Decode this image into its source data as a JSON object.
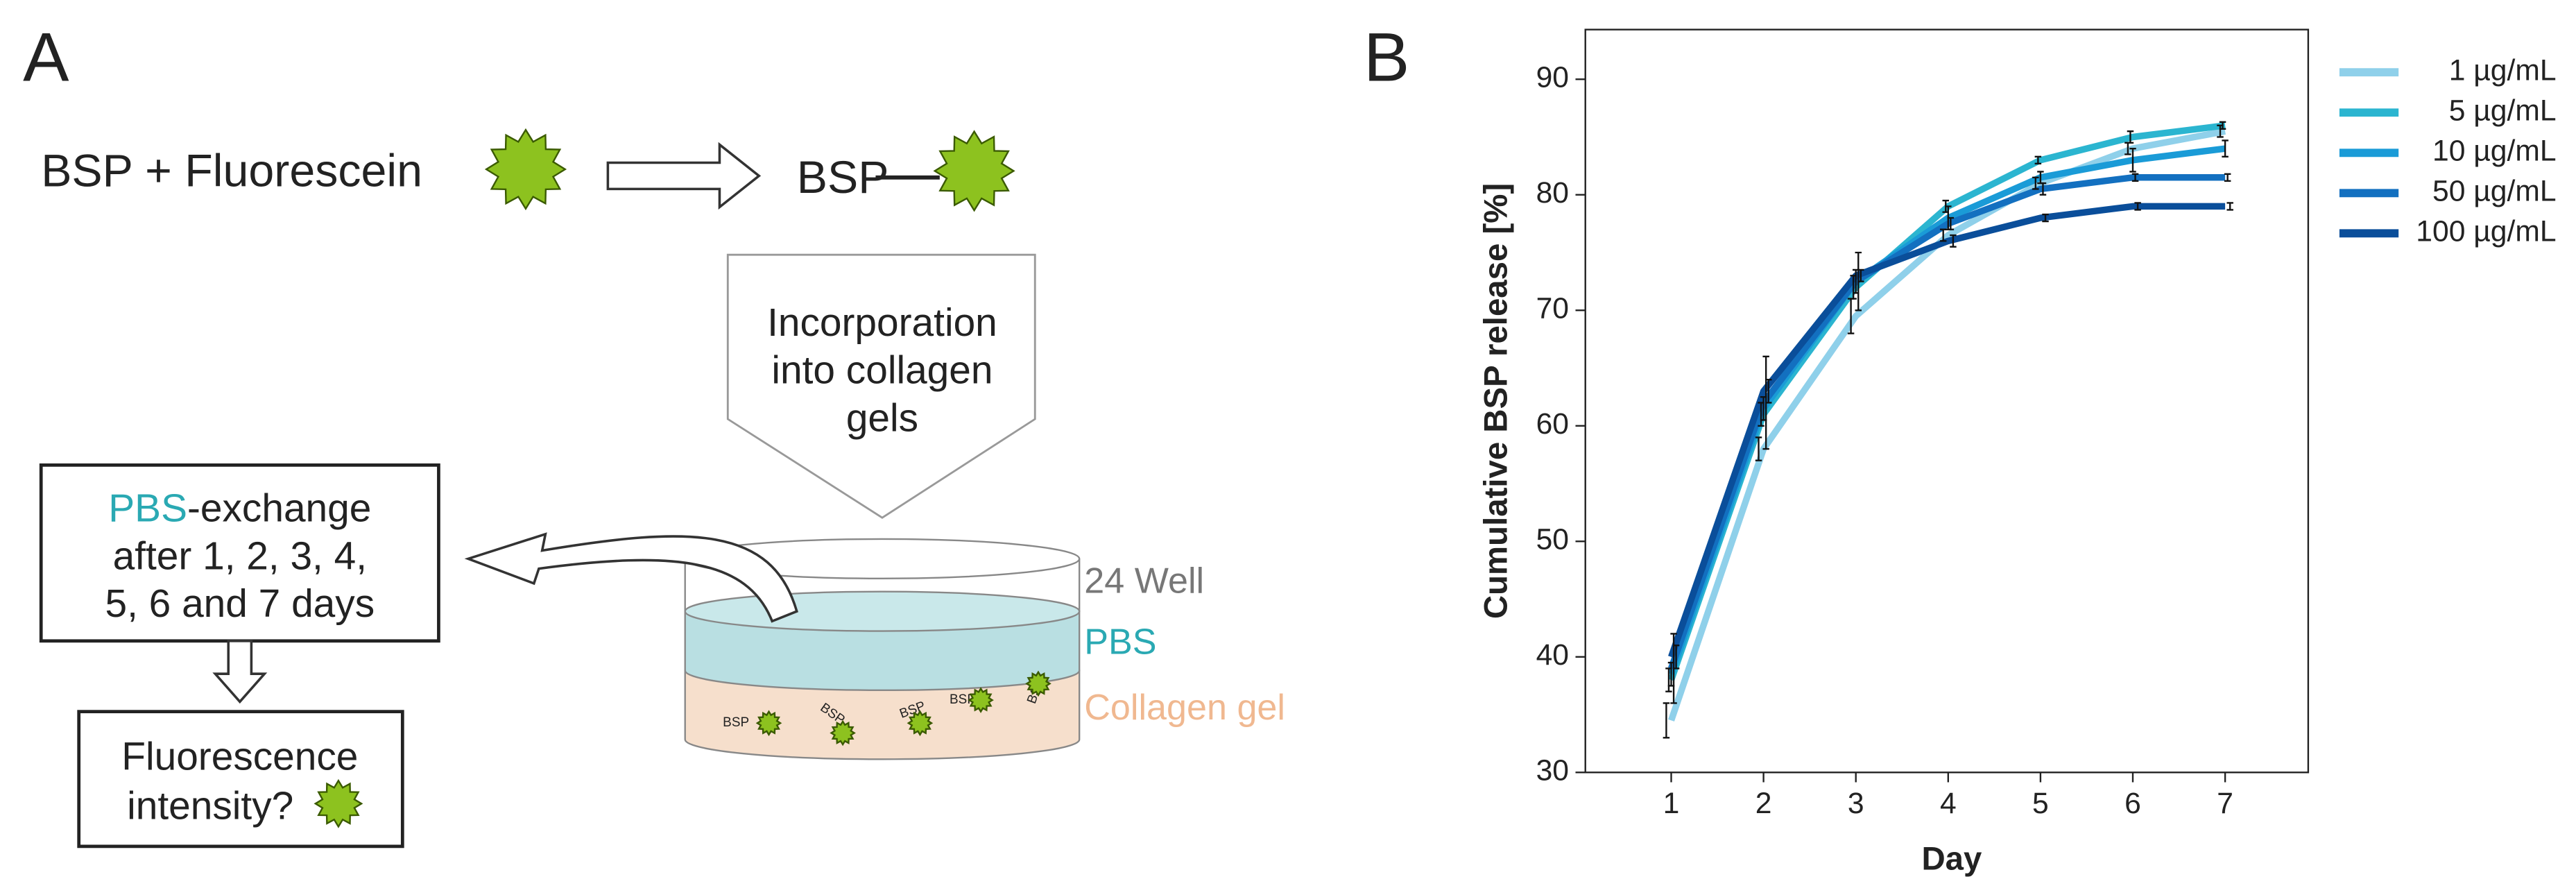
{
  "panel_a": {
    "letter": "A",
    "reaction_left": "BSP + Fluorescein",
    "reaction_right": "BSP",
    "incorporation": [
      "Incorporation",
      "into collagen",
      "gels"
    ],
    "exchange_highlight": "PBS",
    "exchange_rest": "-exchange",
    "exchange_lines": [
      "after 1, 2, 3, 4,",
      "5, 6 and 7 days"
    ],
    "fluorescence": [
      "Fluorescence",
      "intensity?"
    ],
    "well_label": "24 Well",
    "pbs_label": "PBS",
    "gel_label": "Collagen gel",
    "gel_bsp": [
      "BSP",
      "BSP",
      "BSP",
      "BSP",
      "BSP"
    ]
  },
  "chart_data": {
    "type": "line",
    "letter": "B",
    "xlabel": "Day",
    "ylabel": "Cumulative BSP release [%]",
    "x": [
      1,
      2,
      3,
      4,
      5,
      6,
      7
    ],
    "xlim": [
      0.07,
      7.9
    ],
    "xticks": [
      1,
      2,
      3,
      4,
      5,
      6,
      7
    ],
    "ylim": [
      30,
      94.3
    ],
    "yticks": [
      30,
      40,
      50,
      60,
      70,
      80,
      90
    ],
    "legend": "top-right",
    "series": [
      {
        "name": "1 µg/mL",
        "color": "#8fd0ea",
        "values": [
          34.5,
          58,
          69.5,
          76.5,
          81,
          84,
          85.5
        ],
        "errors": [
          1.5,
          1,
          1.5,
          0.5,
          0.5,
          0.5,
          0.5
        ]
      },
      {
        "name": "5 µg/mL",
        "color": "#2bb5d0",
        "values": [
          38,
          61,
          72,
          79,
          83,
          85,
          86
        ],
        "errors": [
          1,
          1,
          1,
          0.5,
          0.3,
          0.5,
          0.3
        ]
      },
      {
        "name": "10 µg/mL",
        "color": "#1a9bd7",
        "values": [
          38.5,
          61.5,
          72.5,
          78,
          81.5,
          83,
          84
        ],
        "errors": [
          1,
          1,
          1,
          1,
          0.5,
          1,
          0.7
        ]
      },
      {
        "name": "50 µg/mL",
        "color": "#1370c0",
        "values": [
          39,
          62,
          72.5,
          77.5,
          80.5,
          81.5,
          81.5
        ],
        "errors": [
          3,
          4,
          2.5,
          0.5,
          0.5,
          0.3,
          0.3
        ]
      },
      {
        "name": "100 µg/mL",
        "color": "#0a4e9a",
        "values": [
          40,
          63,
          73,
          76,
          78,
          79,
          79
        ],
        "errors": [
          1,
          1,
          0.5,
          0.5,
          0.3,
          0.3,
          0.3
        ]
      }
    ]
  }
}
